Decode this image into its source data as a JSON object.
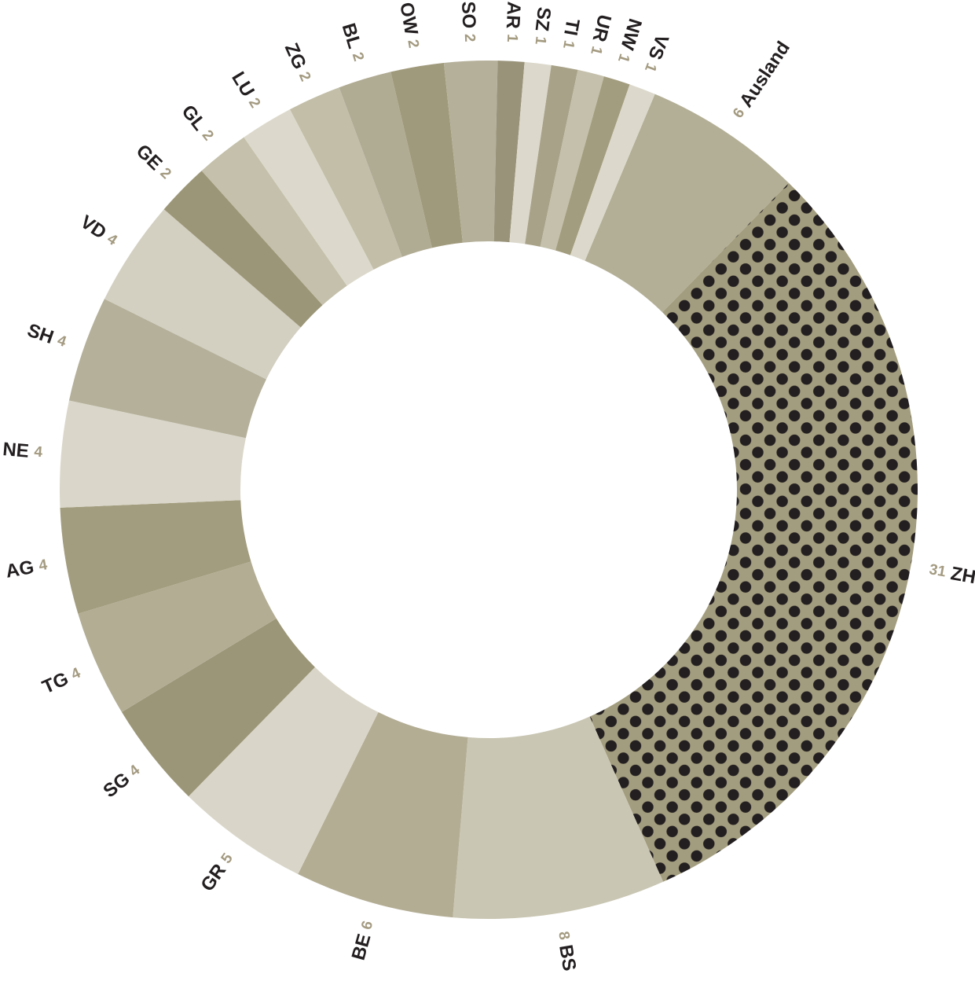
{
  "chart_data": {
    "type": "pie",
    "variant": "donut",
    "start_direction": "clockwise from the Ausland/VS boundary at top",
    "slices": [
      {
        "label": "Ausland",
        "value": 6,
        "color": "#b3af96",
        "pattern": "none"
      },
      {
        "label": "ZH",
        "value": 31,
        "color": "#a39d7f",
        "pattern": "dots"
      },
      {
        "label": "BS",
        "value": 8,
        "color": "#c9c6b3",
        "pattern": "none"
      },
      {
        "label": "BE",
        "value": 6,
        "color": "#b3ad94",
        "pattern": "none"
      },
      {
        "label": "GR",
        "value": 5,
        "color": "#d9d6c9",
        "pattern": "none"
      },
      {
        "label": "SG",
        "value": 4,
        "color": "#9c9678",
        "pattern": "none"
      },
      {
        "label": "TG",
        "value": 4,
        "color": "#b3ad94",
        "pattern": "none"
      },
      {
        "label": "AG",
        "value": 4,
        "color": "#a39d7f",
        "pattern": "none"
      },
      {
        "label": "NE",
        "value": 4,
        "color": "#dad7ca",
        "pattern": "none"
      },
      {
        "label": "SH",
        "value": 4,
        "color": "#b5b09a",
        "pattern": "none"
      },
      {
        "label": "VD",
        "value": 4,
        "color": "#d3d0c2",
        "pattern": "none"
      },
      {
        "label": "GE",
        "value": 2,
        "color": "#9c9678",
        "pattern": "none"
      },
      {
        "label": "GL",
        "value": 2,
        "color": "#c4c0ab",
        "pattern": "none"
      },
      {
        "label": "LU",
        "value": 2,
        "color": "#dcd9cc",
        "pattern": "none"
      },
      {
        "label": "ZG",
        "value": 2,
        "color": "#c2bea8",
        "pattern": "none"
      },
      {
        "label": "BL",
        "value": 2,
        "color": "#b0ab93",
        "pattern": "none"
      },
      {
        "label": "OW",
        "value": 2,
        "color": "#a09a7c",
        "pattern": "none"
      },
      {
        "label": "SO",
        "value": 2,
        "color": "#b5b09a",
        "pattern": "none"
      },
      {
        "label": "AR",
        "value": 1,
        "color": "#99937a",
        "pattern": "none"
      },
      {
        "label": "SZ",
        "value": 1,
        "color": "#dcd9cc",
        "pattern": "none"
      },
      {
        "label": "TI",
        "value": 1,
        "color": "#a8a288",
        "pattern": "none"
      },
      {
        "label": "UR",
        "value": 1,
        "color": "#c4c0ab",
        "pattern": "none"
      },
      {
        "label": "NW",
        "value": 1,
        "color": "#a39d7f",
        "pattern": "none"
      },
      {
        "label": "VS",
        "value": 1,
        "color": "#dcd9cc",
        "pattern": "none"
      }
    ],
    "colors": {
      "name_label": "#231f20",
      "value_label": "#a39a80",
      "dot_pattern": "#231f20",
      "background": "#ffffff"
    },
    "legend": "none"
  }
}
